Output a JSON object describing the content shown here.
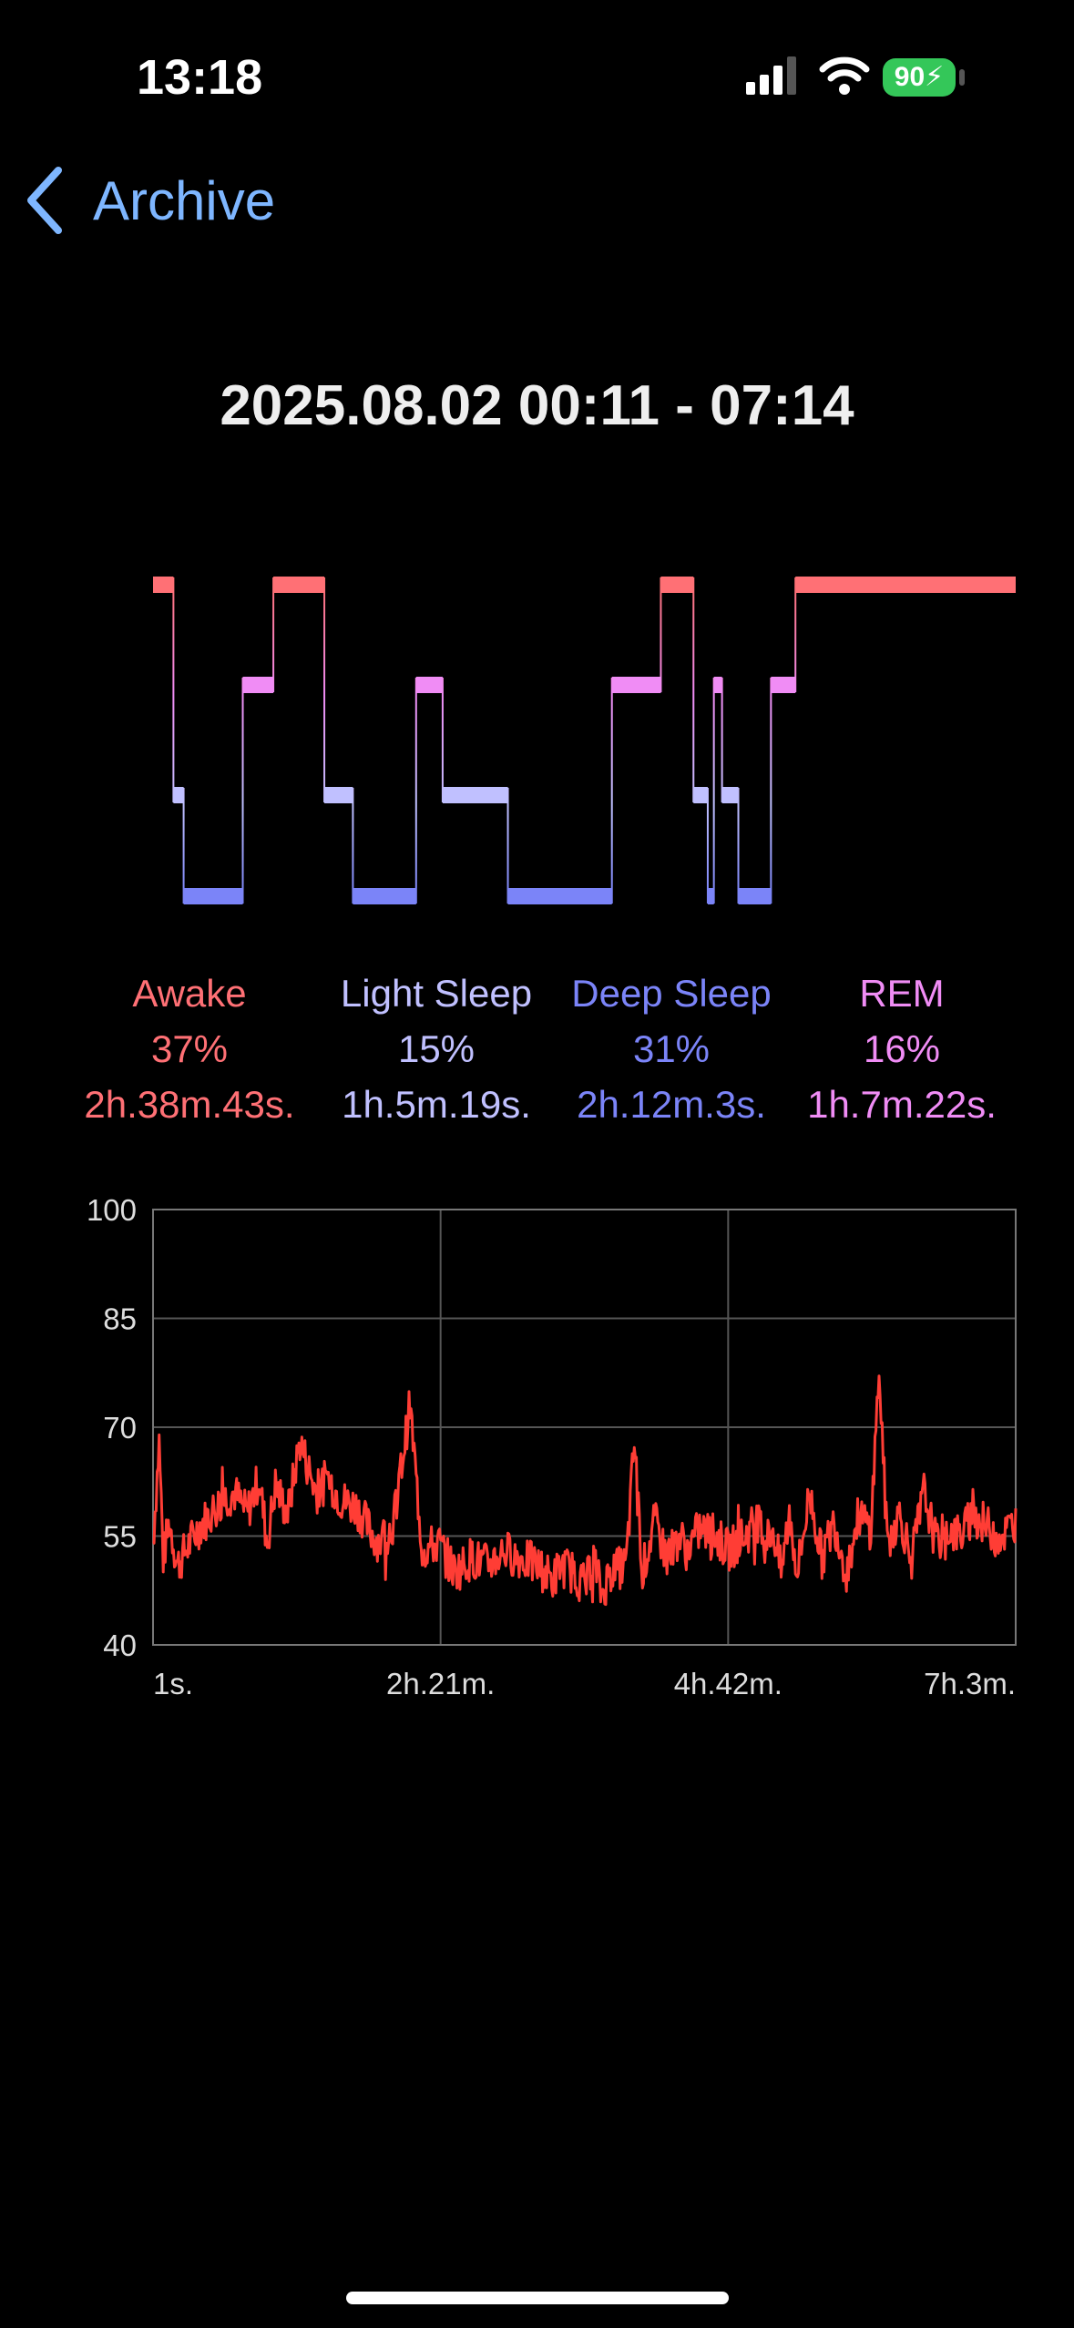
{
  "status": {
    "time": "13:18",
    "battery": "90"
  },
  "nav": {
    "back_label": "Archive"
  },
  "title": "2025.08.02 00:11 - 07:14",
  "colors": {
    "awake": "#ff7075",
    "light": "#c0c0ff",
    "deep": "#7b84f8",
    "rem": "#f08cf5",
    "hr": "#ff3d35"
  },
  "stages": [
    {
      "name": "Awake",
      "pct": "37%",
      "duration": "2h.38m.43s.",
      "color": "#ff7075"
    },
    {
      "name": "Light Sleep",
      "pct": "15%",
      "duration": "1h.5m.19s.",
      "color": "#c0c0ff"
    },
    {
      "name": "Deep Sleep",
      "pct": "31%",
      "duration": "2h.12m.3s.",
      "color": "#7b84f8"
    },
    {
      "name": "REM",
      "pct": "16%",
      "duration": "1h.7m.22s.",
      "color": "#f08cf5"
    }
  ],
  "chart_data": [
    {
      "type": "line",
      "step": true,
      "stage_levels": [
        "Awake",
        "REM",
        "Light Sleep",
        "Deep Sleep"
      ],
      "x_unit": "minutes",
      "x_range": [
        0,
        423
      ],
      "segments": [
        {
          "start": 0,
          "end": 10,
          "stage": "Awake"
        },
        {
          "start": 10,
          "end": 15,
          "stage": "Light Sleep"
        },
        {
          "start": 15,
          "end": 44,
          "stage": "Deep Sleep"
        },
        {
          "start": 44,
          "end": 59,
          "stage": "REM"
        },
        {
          "start": 59,
          "end": 84,
          "stage": "Awake"
        },
        {
          "start": 84,
          "end": 98,
          "stage": "Light Sleep"
        },
        {
          "start": 98,
          "end": 129,
          "stage": "Deep Sleep"
        },
        {
          "start": 129,
          "end": 142,
          "stage": "REM"
        },
        {
          "start": 142,
          "end": 174,
          "stage": "Light Sleep"
        },
        {
          "start": 174,
          "end": 225,
          "stage": "Deep Sleep"
        },
        {
          "start": 225,
          "end": 249,
          "stage": "REM"
        },
        {
          "start": 249,
          "end": 265,
          "stage": "Awake"
        },
        {
          "start": 265,
          "end": 272,
          "stage": "Light Sleep"
        },
        {
          "start": 272,
          "end": 275,
          "stage": "Deep Sleep"
        },
        {
          "start": 275,
          "end": 279,
          "stage": "REM"
        },
        {
          "start": 279,
          "end": 287,
          "stage": "Light Sleep"
        },
        {
          "start": 287,
          "end": 303,
          "stage": "Deep Sleep"
        },
        {
          "start": 303,
          "end": 315,
          "stage": "REM"
        },
        {
          "start": 315,
          "end": 423,
          "stage": "Awake"
        }
      ]
    },
    {
      "type": "line",
      "series": [
        {
          "keypoints_x": [
            0,
            3,
            5,
            8,
            12,
            18,
            22,
            28,
            34,
            40,
            46,
            52,
            56,
            60,
            66,
            72,
            80,
            86,
            92,
            100,
            104,
            108,
            112,
            118,
            126,
            132,
            140,
            148,
            156,
            164,
            172,
            180,
            188,
            196,
            200,
            206,
            212,
            216,
            220,
            224,
            232,
            236,
            240,
            246,
            252,
            258,
            262,
            268,
            276,
            282,
            290,
            296,
            300,
            304,
            308,
            312,
            316,
            322,
            328,
            334,
            340,
            346,
            352,
            356,
            360,
            366,
            372,
            378,
            384,
            390,
            396,
            402,
            410,
            416,
            423
          ],
          "keypoints_y": [
            54,
            68,
            52,
            57,
            51,
            54,
            56,
            58,
            60,
            61,
            58,
            63,
            54,
            62,
            58,
            68,
            61,
            63,
            60,
            59,
            57,
            55,
            54,
            57,
            73,
            53,
            54,
            50,
            52,
            51,
            53,
            52,
            51,
            49,
            51,
            50,
            48,
            52,
            47,
            50,
            51,
            68,
            50,
            57,
            52,
            55,
            53,
            56,
            55,
            53,
            55,
            57,
            54,
            56,
            50,
            58,
            50,
            61,
            52,
            57,
            50,
            58,
            56,
            78,
            54,
            58,
            52,
            61,
            54,
            56,
            55,
            58,
            56,
            55,
            57
          ],
          "noise_amplitude": 3
        }
      ],
      "x_tick_labels": [
        "1s.",
        "2h.21m.",
        "4h.42m.",
        "7h.3m."
      ],
      "y_ticks": [
        100,
        85,
        70,
        55,
        40
      ],
      "ylim": [
        40,
        100
      ],
      "x_range_minutes": [
        0,
        423
      ],
      "grid": true
    }
  ]
}
